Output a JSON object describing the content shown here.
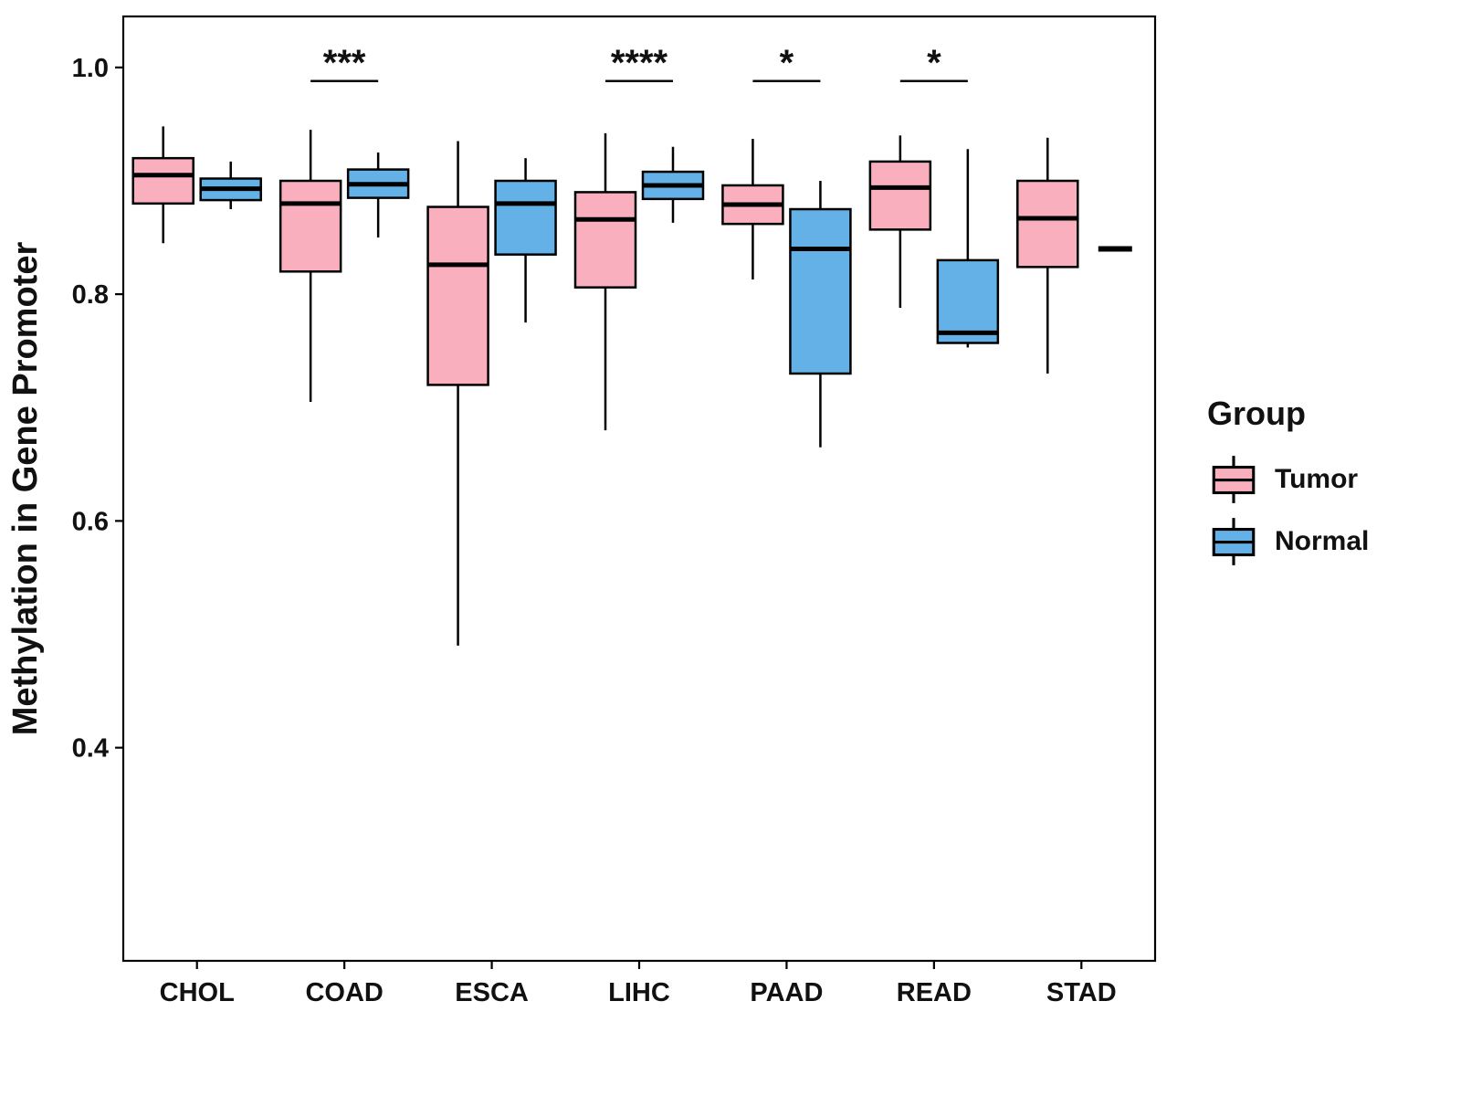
{
  "chart_data": {
    "type": "boxplot",
    "title": "",
    "xlabel": "",
    "ylabel": "Methylation in Gene Promoter",
    "ylim": [
      0.212,
      1.045
    ],
    "yticks": [
      0.4,
      0.6,
      0.8,
      1.0
    ],
    "ytick_labels": [
      "0.4",
      "0.6",
      "0.8",
      "1.0"
    ],
    "categories": [
      "CHOL",
      "COAD",
      "ESCA",
      "LIHC",
      "PAAD",
      "READ",
      "STAD"
    ],
    "grid": "off",
    "legend_position": "right",
    "series": [
      {
        "name": "Tumor",
        "color": "#F9AFBD",
        "boxes": [
          {
            "min": 0.845,
            "q1": 0.88,
            "median": 0.905,
            "q3": 0.92,
            "max": 0.948
          },
          {
            "min": 0.705,
            "q1": 0.82,
            "median": 0.88,
            "q3": 0.9,
            "max": 0.945
          },
          {
            "min": 0.49,
            "q1": 0.72,
            "median": 0.826,
            "q3": 0.877,
            "max": 0.935
          },
          {
            "min": 0.68,
            "q1": 0.806,
            "median": 0.866,
            "q3": 0.89,
            "max": 0.942
          },
          {
            "min": 0.813,
            "q1": 0.862,
            "median": 0.879,
            "q3": 0.896,
            "max": 0.937
          },
          {
            "min": 0.788,
            "q1": 0.857,
            "median": 0.894,
            "q3": 0.917,
            "max": 0.94
          },
          {
            "min": 0.73,
            "q1": 0.824,
            "median": 0.867,
            "q3": 0.9,
            "max": 0.938
          }
        ]
      },
      {
        "name": "Normal",
        "color": "#63B1E6",
        "boxes": [
          {
            "min": 0.875,
            "q1": 0.883,
            "median": 0.893,
            "q3": 0.902,
            "max": 0.917
          },
          {
            "min": 0.85,
            "q1": 0.885,
            "median": 0.897,
            "q3": 0.91,
            "max": 0.925
          },
          {
            "min": 0.775,
            "q1": 0.835,
            "median": 0.88,
            "q3": 0.9,
            "max": 0.92
          },
          {
            "min": 0.863,
            "q1": 0.884,
            "median": 0.896,
            "q3": 0.908,
            "max": 0.93
          },
          {
            "min": 0.665,
            "q1": 0.73,
            "median": 0.84,
            "q3": 0.875,
            "max": 0.9
          },
          {
            "min": 0.753,
            "q1": 0.757,
            "median": 0.766,
            "q3": 0.83,
            "max": 0.928
          },
          {
            "min": 0.84,
            "q1": 0.84,
            "median": 0.84,
            "q3": 0.84,
            "max": 0.84
          }
        ]
      }
    ],
    "significance": [
      {
        "category": "COAD",
        "label": "***",
        "y": 0.988
      },
      {
        "category": "LIHC",
        "label": "****",
        "y": 0.988
      },
      {
        "category": "PAAD",
        "label": "*",
        "y": 0.988
      },
      {
        "category": "READ",
        "label": "*",
        "y": 0.988
      }
    ],
    "legend": {
      "title": "Group",
      "entries": [
        "Tumor",
        "Normal"
      ]
    }
  }
}
